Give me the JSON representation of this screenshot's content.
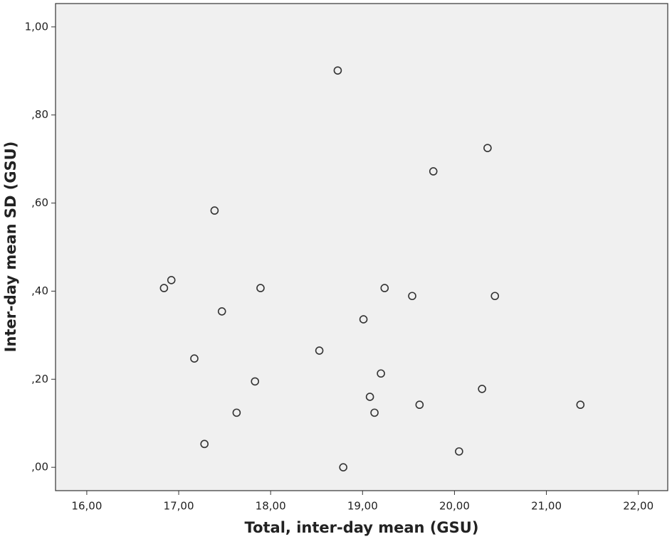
{
  "chart_data": {
    "type": "scatter",
    "xlabel": "Total, inter-day mean (GSU)",
    "ylabel": "Inter-day mean SD (GSU)",
    "color": "#333333",
    "background": "#f0f0f0",
    "x": [
      18.73,
      20.36,
      19.77,
      17.39,
      16.92,
      16.84,
      17.89,
      19.24,
      19.54,
      20.44,
      17.47,
      19.01,
      18.53,
      17.17,
      19.2,
      17.83,
      20.3,
      19.08,
      19.62,
      21.37,
      17.63,
      19.13,
      17.28,
      20.05,
      18.79
    ],
    "values": [
      0.901,
      0.725,
      0.672,
      0.583,
      0.425,
      0.407,
      0.407,
      0.407,
      0.389,
      0.389,
      0.354,
      0.336,
      0.265,
      0.247,
      0.213,
      0.195,
      0.178,
      0.16,
      0.142,
      0.142,
      0.124,
      0.124,
      0.053,
      0.036,
      0.0
    ],
    "xlim": [
      15.66,
      22.32
    ],
    "ylim": [
      -0.053,
      1.053
    ],
    "xticks": [
      {
        "value": 16,
        "label": "16,00"
      },
      {
        "value": 17,
        "label": "17,00"
      },
      {
        "value": 18,
        "label": "18,00"
      },
      {
        "value": 19,
        "label": "19,00"
      },
      {
        "value": 20,
        "label": "20,00"
      },
      {
        "value": 21,
        "label": "21,00"
      },
      {
        "value": 22,
        "label": "22,00"
      }
    ],
    "yticks": [
      {
        "value": 0,
        "label": ",00"
      },
      {
        "value": 0.2,
        "label": ",20"
      },
      {
        "value": 0.4,
        "label": ",40"
      },
      {
        "value": 0.6,
        "label": ",60"
      },
      {
        "value": 0.8,
        "label": ",80"
      },
      {
        "value": 1,
        "label": "1,00"
      }
    ]
  }
}
